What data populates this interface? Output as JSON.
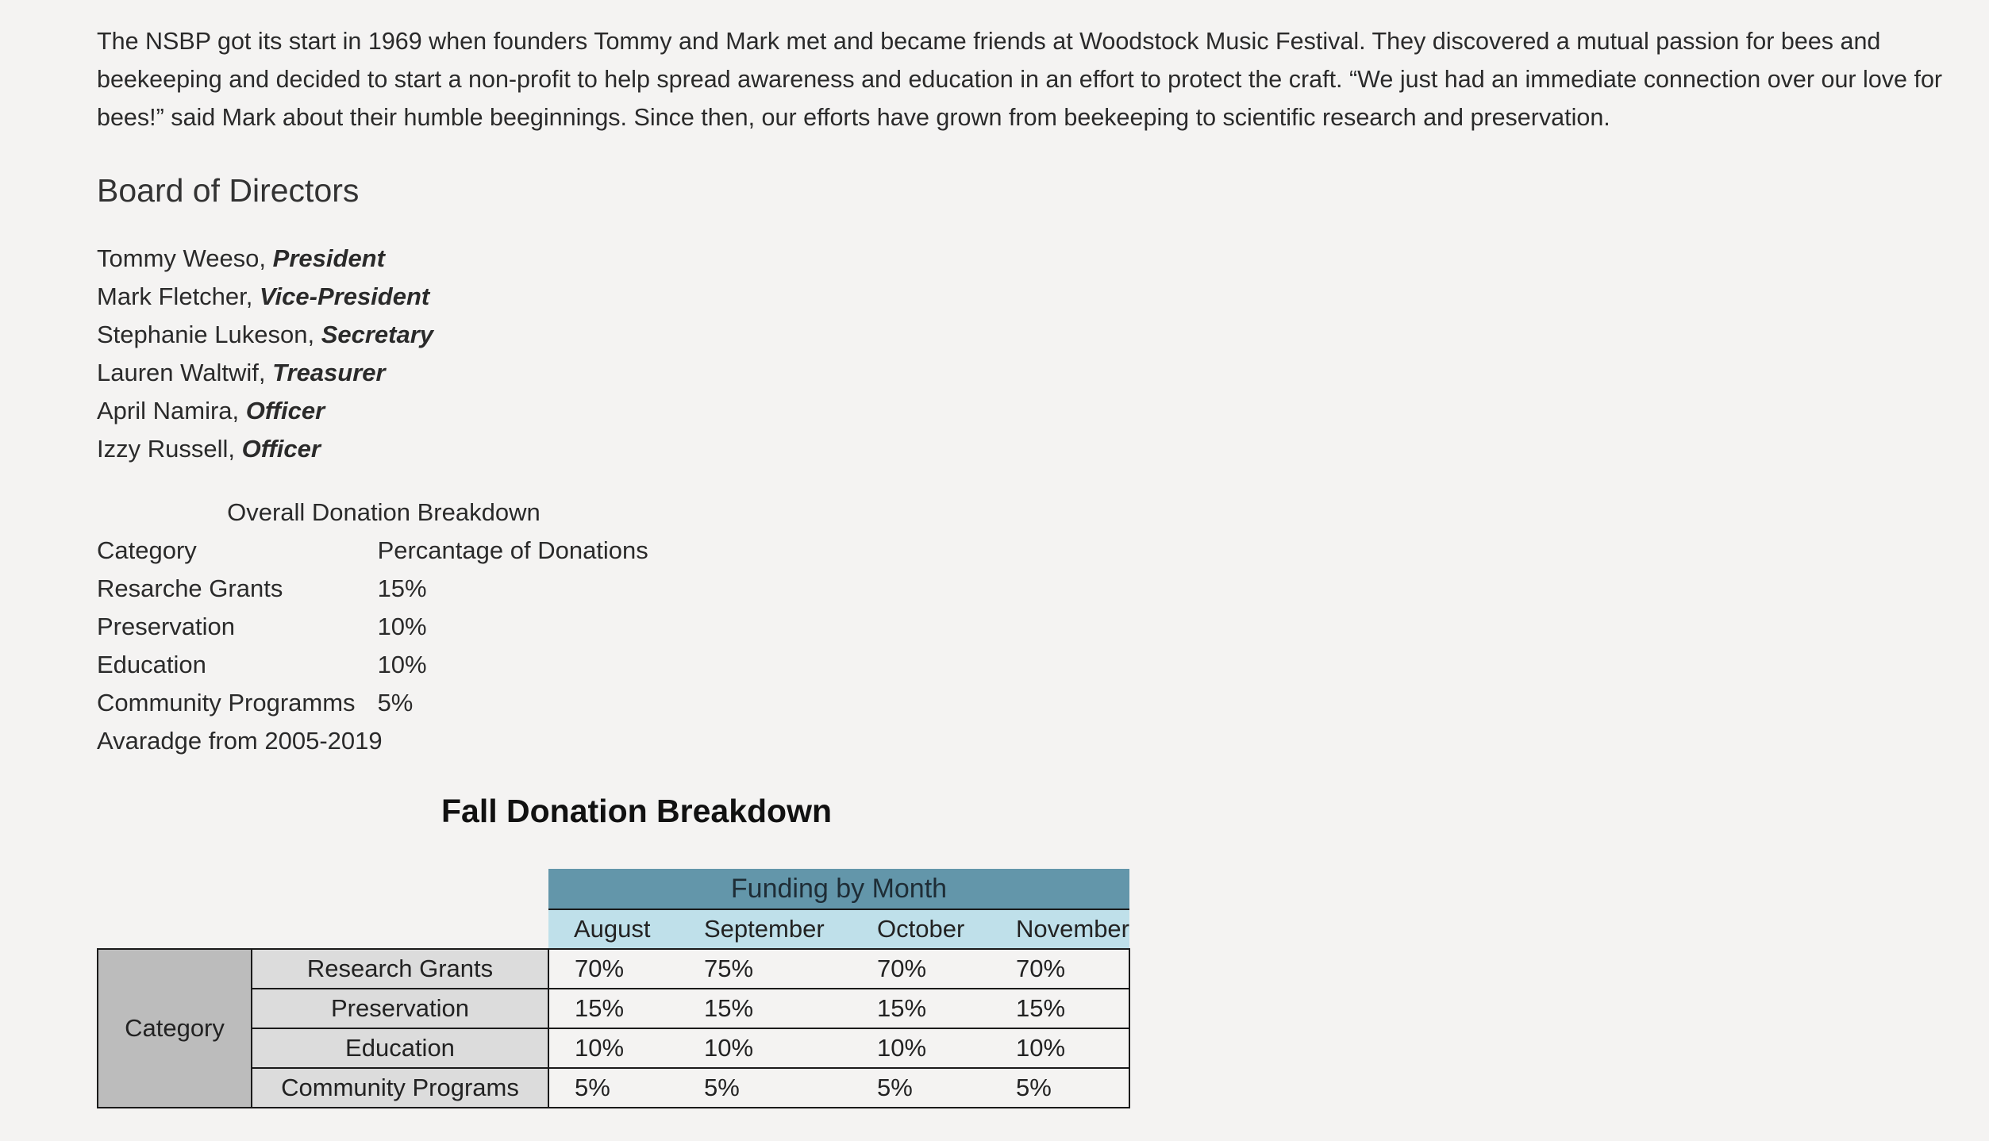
{
  "intro": {
    "paragraph": "The NSBP got its start in 1969 when founders Tommy and Mark met and became friends at Woodstock Music Festival. They discovered a mutual passion for bees and beekeeping and decided to start a non-profit to help spread awareness and education in an effort to protect the craft. “We just had an immediate connection over our love for bees!” said Mark about their humble beeginnings. Since then, our efforts have grown from beekeeping to scientific research and preservation."
  },
  "board": {
    "title": "Board of Directors",
    "members": [
      {
        "name": "Tommy Weeso,",
        "role": "President"
      },
      {
        "name": "Mark Fletcher,",
        "role": "Vice-President"
      },
      {
        "name": "Stephanie Lukeson,",
        "role": "Secretary"
      },
      {
        "name": "Lauren Waltwif,",
        "role": "Treasurer"
      },
      {
        "name": "April Namira,",
        "role": "Officer"
      },
      {
        "name": "Izzy Russell,",
        "role": "Officer"
      }
    ]
  },
  "overall": {
    "caption": "Overall Donation Breakdown",
    "headers": [
      "Category",
      "Percantage of Donations"
    ],
    "rows": [
      [
        "Resarche Grants",
        "15%"
      ],
      [
        "Preservation",
        "10%"
      ],
      [
        "Education",
        "10%"
      ],
      [
        "Community Programms",
        "5%"
      ]
    ],
    "footer": "Avaradge from 2005-2019"
  },
  "fall": {
    "title": "Fall Donation Breakdown",
    "group_header": "Funding by Month",
    "months": [
      "August",
      "September",
      "October",
      "November"
    ],
    "row_group_label": "Category",
    "rows": [
      {
        "category": "Research Grants",
        "values": [
          "70%",
          "75%",
          "70%",
          "70%"
        ]
      },
      {
        "category": "Preservation",
        "values": [
          "15%",
          "15%",
          "15%",
          "15%"
        ]
      },
      {
        "category": "Education",
        "values": [
          "10%",
          "10%",
          "10%",
          "10%"
        ]
      },
      {
        "category": "Community Programs",
        "values": [
          "5%",
          "5%",
          "5%",
          "5%"
        ]
      }
    ]
  },
  "colors": {
    "page_background": "#f4f3f2",
    "funding_header": "#6396aa",
    "month_header": "#bfe0ea",
    "category_merged": "#bcbcbc",
    "category_name": "#dcdcdc"
  }
}
